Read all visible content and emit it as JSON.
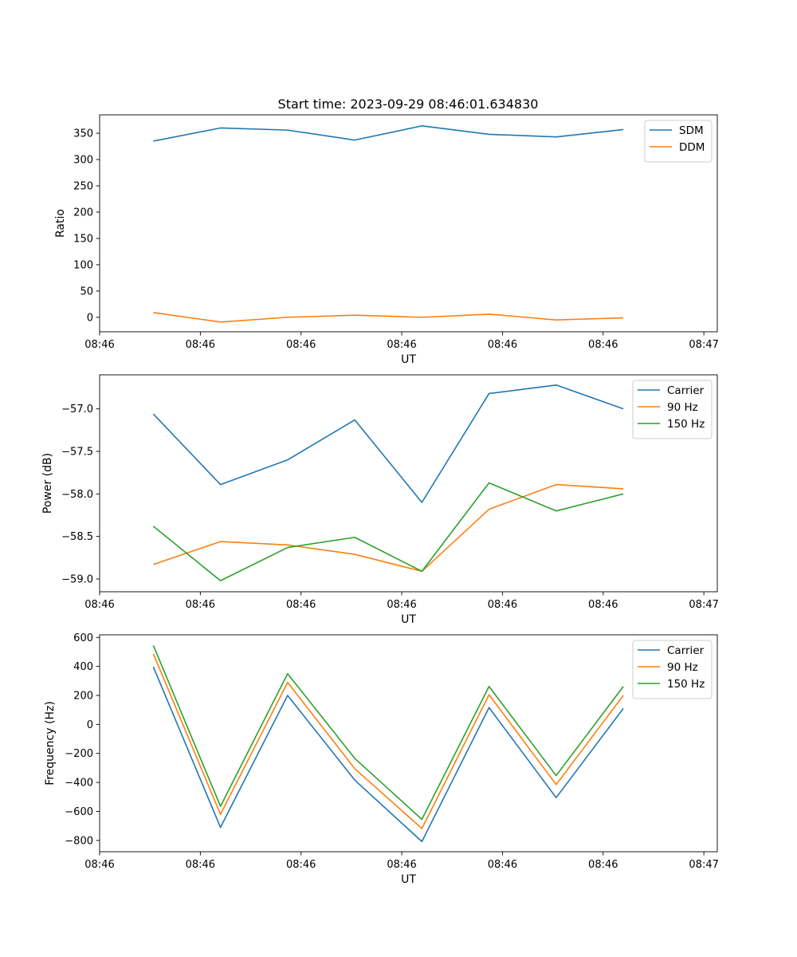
{
  "figure_title": "Start time: 2023-09-29 08:46:01.634830",
  "chart_data": [
    {
      "type": "line",
      "title": "Start time: 2023-09-29 08:46:01.634830",
      "xlabel": "UT",
      "ylabel": "Ratio",
      "x": [
        1,
        2,
        3,
        4,
        5,
        6,
        7,
        8
      ],
      "xlim": [
        0.2,
        9.4
      ],
      "x_ticks": [
        0.2,
        1.7,
        3.2,
        4.7,
        6.2,
        7.7,
        9.2
      ],
      "x_tick_labels": [
        "08:46",
        "08:46",
        "08:46",
        "08:46",
        "08:46",
        "08:46",
        "08:47"
      ],
      "ylim": [
        -27.5,
        385
      ],
      "y_ticks": [
        0,
        50,
        100,
        150,
        200,
        250,
        300,
        350
      ],
      "y_tick_labels": [
        "0",
        "50",
        "100",
        "150",
        "200",
        "250",
        "300",
        "350"
      ],
      "legend_position": "top-right",
      "series": [
        {
          "name": "SDM",
          "color": "#1f77b4",
          "values": [
            335,
            360,
            356,
            337,
            364,
            348,
            343,
            357
          ]
        },
        {
          "name": "DDM",
          "color": "#ff7f0e",
          "values": [
            9,
            -9,
            0,
            4,
            0,
            6,
            -5,
            -1
          ]
        }
      ]
    },
    {
      "type": "line",
      "title": "",
      "xlabel": "UT",
      "ylabel": "Power (dB)",
      "x": [
        1,
        2,
        3,
        4,
        5,
        6,
        7,
        8
      ],
      "xlim": [
        0.2,
        9.4
      ],
      "x_ticks": [
        0.2,
        1.7,
        3.2,
        4.7,
        6.2,
        7.7,
        9.2
      ],
      "x_tick_labels": [
        "08:46",
        "08:46",
        "08:46",
        "08:46",
        "08:46",
        "08:46",
        "08:47"
      ],
      "ylim": [
        -59.15,
        -56.6
      ],
      "y_ticks": [
        -57.0,
        -57.5,
        -58.0,
        -58.5,
        -59.0
      ],
      "y_tick_labels": [
        "−57.0",
        "−57.5",
        "−58.0",
        "−58.5",
        "−59.0"
      ],
      "legend_position": "top-right",
      "series": [
        {
          "name": "Carrier",
          "color": "#1f77b4",
          "values": [
            -57.06,
            -57.89,
            -57.6,
            -57.13,
            -58.1,
            -56.82,
            -56.72,
            -57.0
          ]
        },
        {
          "name": "90 Hz",
          "color": "#ff7f0e",
          "values": [
            -58.83,
            -58.56,
            -58.6,
            -58.71,
            -58.91,
            -58.18,
            -57.89,
            -57.94
          ]
        },
        {
          "name": "150 Hz",
          "color": "#2ca02c",
          "values": [
            -58.38,
            -59.02,
            -58.63,
            -58.51,
            -58.91,
            -57.87,
            -58.2,
            -58.0
          ]
        }
      ]
    },
    {
      "type": "line",
      "title": "",
      "xlabel": "UT",
      "ylabel": "Frequency (Hz)",
      "x": [
        1,
        2,
        3,
        4,
        5,
        6,
        7,
        8
      ],
      "xlim": [
        0.2,
        9.4
      ],
      "x_ticks": [
        0.2,
        1.7,
        3.2,
        4.7,
        6.2,
        7.7,
        9.2
      ],
      "x_tick_labels": [
        "08:46",
        "08:46",
        "08:46",
        "08:46",
        "08:46",
        "08:46",
        "08:47"
      ],
      "ylim": [
        -878,
        618
      ],
      "y_ticks": [
        600,
        400,
        200,
        0,
        -200,
        -400,
        -600,
        -800
      ],
      "y_tick_labels": [
        "600",
        "400",
        "200",
        "0",
        "−200",
        "−400",
        "−600",
        "−800"
      ],
      "legend_position": "top-right",
      "series": [
        {
          "name": "Carrier",
          "color": "#1f77b4",
          "values": [
            397,
            -710,
            200,
            -384,
            -808,
            116,
            -505,
            110
          ]
        },
        {
          "name": "90 Hz",
          "color": "#ff7f0e",
          "values": [
            487,
            -620,
            290,
            -305,
            -718,
            205,
            -415,
            200
          ]
        },
        {
          "name": "150 Hz",
          "color": "#2ca02c",
          "values": [
            545,
            -565,
            350,
            -234,
            -655,
            262,
            -353,
            262
          ]
        }
      ]
    }
  ]
}
